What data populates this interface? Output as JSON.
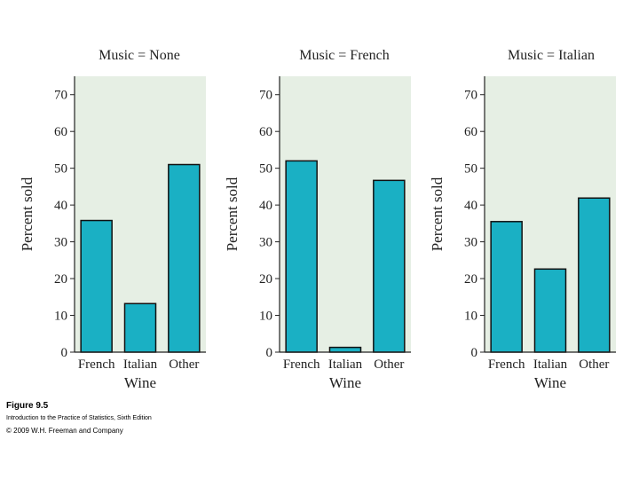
{
  "caption": {
    "figure_label": "Figure 9.5",
    "book": "Introduction to the Practice of Statistics, Sixth Edition",
    "copyright": "© 2009 W.H. Freeman and Company"
  },
  "colors": {
    "bar": "#1ab0c4",
    "plot_bg": "#e6efe4"
  },
  "chart_data": [
    {
      "type": "bar",
      "title": "Music = None",
      "categories": [
        "French",
        "Italian",
        "Other"
      ],
      "values": [
        35.8,
        13.2,
        51.0
      ],
      "xlabel": "Wine",
      "ylabel": "Percent sold",
      "ylim": [
        0,
        75
      ],
      "yticks": [
        0,
        10,
        20,
        30,
        40,
        50,
        60,
        70
      ]
    },
    {
      "type": "bar",
      "title": "Music = French",
      "categories": [
        "French",
        "Italian",
        "Other"
      ],
      "values": [
        52.0,
        1.3,
        46.7
      ],
      "xlabel": "Wine",
      "ylabel": "Percent sold",
      "ylim": [
        0,
        75
      ],
      "yticks": [
        0,
        10,
        20,
        30,
        40,
        50,
        60,
        70
      ]
    },
    {
      "type": "bar",
      "title": "Music = Italian",
      "categories": [
        "French",
        "Italian",
        "Other"
      ],
      "values": [
        35.5,
        22.6,
        41.9
      ],
      "xlabel": "Wine",
      "ylabel": "Percent sold",
      "ylim": [
        0,
        75
      ],
      "yticks": [
        0,
        10,
        20,
        30,
        40,
        50,
        60,
        70
      ]
    }
  ]
}
